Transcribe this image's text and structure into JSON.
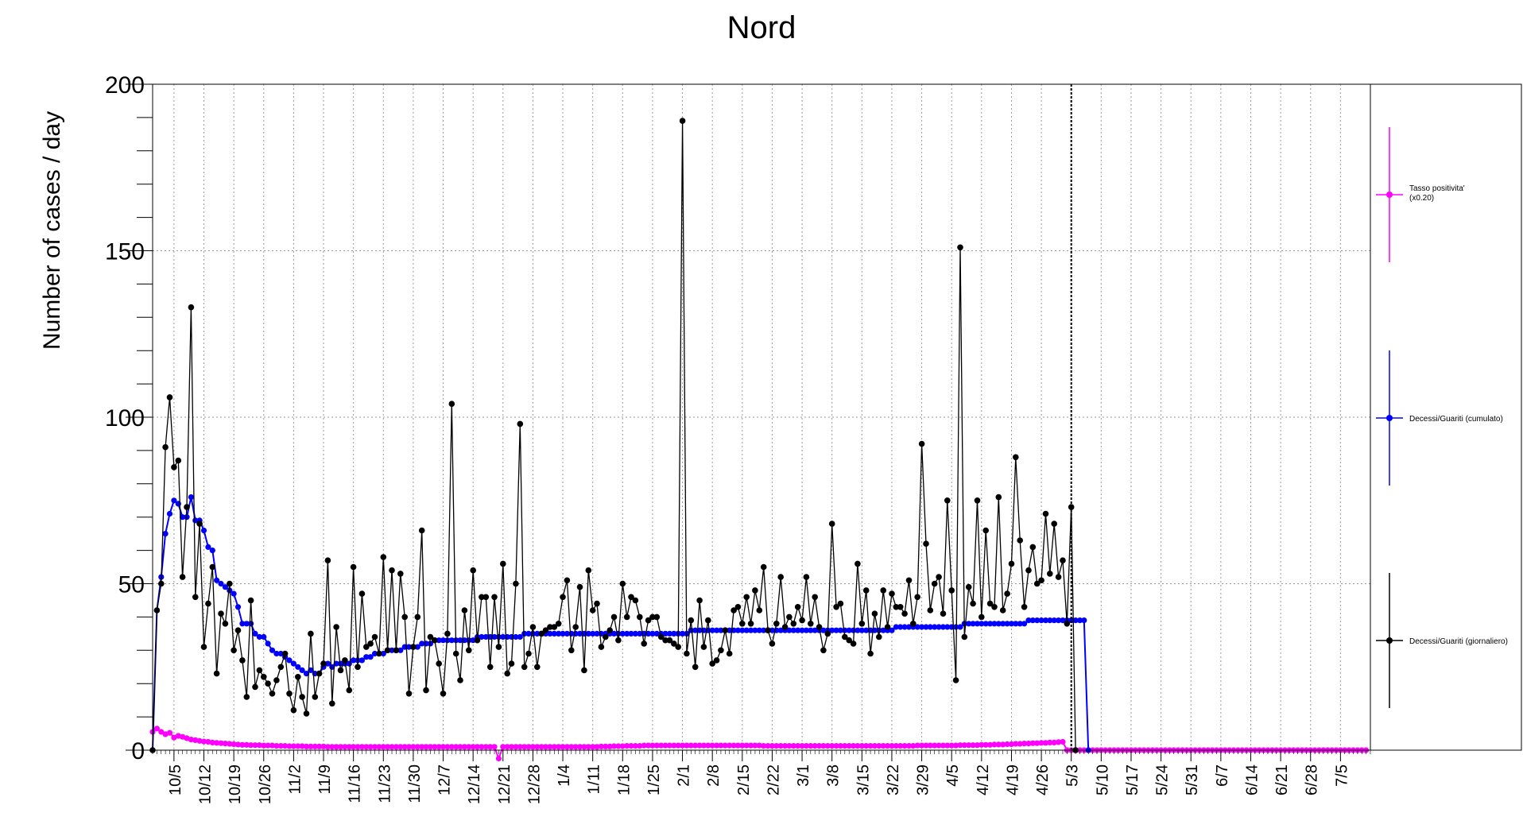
{
  "chart_data": {
    "type": "line",
    "title": "Nord",
    "xlabel": "",
    "ylabel": "Number of cases / day",
    "ylim": [
      0,
      200
    ],
    "y_ticks": [
      0,
      50,
      100,
      150,
      200
    ],
    "grid": true,
    "legend_position": "right",
    "x_tick_labels": [
      "10/5",
      "10/12",
      "10/19",
      "10/26",
      "11/2",
      "11/9",
      "11/16",
      "11/23",
      "11/30",
      "12/7",
      "12/14",
      "12/21",
      "12/28",
      "1/4",
      "1/11",
      "1/18",
      "1/25",
      "2/1",
      "2/8",
      "2/15",
      "2/22",
      "3/1",
      "3/8",
      "3/15",
      "3/22",
      "3/29",
      "4/5",
      "4/12",
      "4/19",
      "4/26",
      "5/3",
      "5/10",
      "5/17",
      "5/24",
      "5/31",
      "6/7",
      "6/14",
      "6/21",
      "6/28",
      "7/5"
    ],
    "x_start": "9/30",
    "x_end": "7/12",
    "marker_date": "5/3",
    "series": [
      {
        "name": "Decessi/Guariti (giornaliero)",
        "color": "#000000",
        "values": [
          0,
          42,
          50,
          91,
          106,
          85,
          87,
          52,
          73,
          133,
          46,
          68,
          31,
          44,
          55,
          23,
          41,
          38,
          50,
          30,
          36,
          27,
          16,
          45,
          19,
          24,
          22,
          20,
          17,
          21,
          25,
          29,
          17,
          12,
          22,
          16,
          11,
          35,
          16,
          23,
          26,
          57,
          14,
          37,
          24,
          27,
          18,
          55,
          25,
          47,
          31,
          32,
          34,
          29,
          58,
          30,
          54,
          30,
          53,
          40,
          17,
          31,
          40,
          66,
          18,
          34,
          33,
          26,
          17,
          35,
          104,
          29,
          21,
          42,
          30,
          54,
          33,
          46,
          46,
          25,
          46,
          31,
          56,
          23,
          26,
          50,
          98,
          25,
          29,
          37,
          25,
          35,
          36,
          37,
          37,
          38,
          46,
          51,
          30,
          37,
          49,
          24,
          54,
          42,
          44,
          31,
          34,
          36,
          40,
          33,
          50,
          40,
          46,
          45,
          40,
          32,
          39,
          40,
          40,
          34,
          33,
          33,
          32,
          31,
          189,
          29,
          39,
          25,
          45,
          31,
          39,
          26,
          27,
          30,
          36,
          29,
          42,
          43,
          38,
          46,
          38,
          48,
          42,
          55,
          36,
          32,
          38,
          52,
          37,
          40,
          38,
          43,
          39,
          52,
          38,
          46,
          37,
          30,
          35,
          68,
          43,
          44,
          34,
          33,
          32,
          56,
          38,
          48,
          29,
          41,
          34,
          48,
          37,
          47,
          43,
          43,
          41,
          51,
          38,
          46,
          92,
          62,
          42,
          50,
          52,
          41,
          75,
          48,
          21,
          151,
          34,
          49,
          44,
          75,
          40,
          66,
          44,
          43,
          76,
          42,
          47,
          56,
          88,
          63,
          43,
          54,
          61,
          50,
          51,
          71,
          53,
          68,
          52,
          57,
          38,
          73,
          0
        ]
      },
      {
        "name": "Decessi/Guariti (cumulato)",
        "color": "#0000ff",
        "values": [
          0,
          42,
          52,
          65,
          71,
          75,
          74,
          70,
          70,
          76,
          69,
          69,
          66,
          61,
          60,
          51,
          50,
          49,
          48,
          47,
          43,
          38,
          38,
          38,
          35,
          34,
          34,
          32,
          30,
          29,
          29,
          28,
          27,
          26,
          25,
          24,
          23,
          24,
          23,
          23,
          25,
          26,
          25,
          26,
          26,
          26,
          26,
          27,
          27,
          27,
          28,
          28,
          29,
          29,
          29,
          30,
          30,
          30,
          30,
          31,
          31,
          31,
          31,
          32,
          32,
          32,
          33,
          33,
          33,
          33,
          33,
          33,
          33,
          33,
          33,
          33,
          34,
          34,
          34,
          34,
          34,
          34,
          34,
          34,
          34,
          34,
          34,
          35,
          35,
          35,
          35,
          35,
          35,
          35,
          35,
          35,
          35,
          35,
          35,
          35,
          35,
          35,
          35,
          35,
          35,
          35,
          35,
          35,
          35,
          35,
          35,
          35,
          35,
          35,
          35,
          35,
          35,
          35,
          35,
          35,
          35,
          35,
          35,
          35,
          35,
          35,
          36,
          36,
          36,
          36,
          36,
          36,
          36,
          36,
          36,
          36,
          36,
          36,
          36,
          36,
          36,
          36,
          36,
          36,
          36,
          36,
          36,
          36,
          36,
          36,
          36,
          36,
          36,
          36,
          36,
          36,
          36,
          36,
          36,
          36,
          36,
          36,
          36,
          36,
          36,
          36,
          36,
          36,
          36,
          36,
          36,
          36,
          36,
          36,
          37,
          37,
          37,
          37,
          37,
          37,
          37,
          37,
          37,
          37,
          37,
          37,
          37,
          37,
          37,
          37,
          38,
          38,
          38,
          38,
          38,
          38,
          38,
          38,
          38,
          38,
          38,
          38,
          38,
          38,
          38,
          39,
          39,
          39,
          39,
          39,
          39,
          39,
          39,
          39,
          39,
          39,
          39,
          39,
          39,
          0
        ]
      },
      {
        "name": "Tasso positivita' (x0.20)",
        "color": "#ff00ff",
        "values": [
          5.5,
          6.5,
          5.5,
          4.8,
          5.2,
          3.8,
          4.3,
          4.0,
          3.6,
          3.2,
          3.0,
          2.8,
          2.6,
          2.5,
          2.3,
          2.2,
          2.1,
          2.0,
          1.9,
          1.8,
          1.7,
          1.6,
          1.6,
          1.5,
          1.5,
          1.5,
          1.4,
          1.4,
          1.4,
          1.3,
          1.3,
          1.3,
          1.2,
          1.2,
          1.2,
          1.2,
          1.1,
          1.1,
          1.1,
          1.1,
          1.1,
          1.0,
          1.0,
          1.0,
          1.0,
          1.0,
          1.0,
          1.0,
          1.0,
          1.0,
          1.0,
          1.0,
          1.0,
          1.0,
          1.0,
          1.0,
          1.0,
          1.0,
          1.0,
          1.0,
          1.0,
          1.0,
          1.0,
          1.0,
          1.0,
          1.0,
          1.0,
          1.0,
          1.0,
          1.0,
          1.0,
          1.0,
          1.0,
          1.0,
          1.0,
          1.0,
          1.0,
          1.0,
          1.0,
          1.0,
          1.0,
          -2.5,
          1.0,
          1.0,
          1.0,
          1.0,
          1.0,
          1.0,
          1.0,
          1.0,
          1.0,
          1.0,
          1.0,
          1.0,
          1.0,
          1.0,
          1.0,
          1.0,
          1.0,
          1.0,
          1.0,
          1.0,
          1.0,
          1.0,
          1.0,
          1.1,
          1.1,
          1.1,
          1.2,
          1.2,
          1.2,
          1.3,
          1.3,
          1.3,
          1.3,
          1.4,
          1.4,
          1.4,
          1.4,
          1.4,
          1.4,
          1.4,
          1.4,
          1.4,
          1.4,
          1.4,
          1.4,
          1.4,
          1.4,
          1.4,
          1.4,
          1.4,
          1.4,
          1.4,
          1.4,
          1.4,
          1.4,
          1.4,
          1.4,
          1.4,
          1.4,
          1.4,
          1.4,
          1.3,
          1.3,
          1.3,
          1.3,
          1.3,
          1.3,
          1.3,
          1.3,
          1.3,
          1.3,
          1.3,
          1.3,
          1.3,
          1.3,
          1.3,
          1.3,
          1.3,
          1.3,
          1.3,
          1.3,
          1.3,
          1.3,
          1.3,
          1.3,
          1.3,
          1.3,
          1.3,
          1.3,
          1.3,
          1.3,
          1.3,
          1.3,
          1.3,
          1.3,
          1.3,
          1.3,
          1.4,
          1.4,
          1.4,
          1.4,
          1.4,
          1.4,
          1.4,
          1.4,
          1.4,
          1.4,
          1.5,
          1.5,
          1.5,
          1.5,
          1.5,
          1.6,
          1.6,
          1.6,
          1.7,
          1.7,
          1.7,
          1.8,
          1.8,
          1.9,
          1.9,
          2.0,
          2.0,
          2.1,
          2.1,
          2.2,
          2.2,
          2.3,
          2.3,
          2.4,
          2.5,
          0,
          0,
          0,
          0,
          0,
          0,
          0,
          0,
          0,
          0,
          0,
          0,
          0,
          0,
          0,
          0,
          0,
          0,
          0,
          0,
          0,
          0,
          0,
          0,
          0,
          0,
          0,
          0,
          0,
          0,
          0,
          0,
          0,
          0,
          0,
          0,
          0,
          0,
          0,
          0,
          0,
          0,
          0,
          0,
          0,
          0,
          0,
          0,
          0,
          0,
          0,
          0,
          0,
          0,
          0,
          0,
          0,
          0,
          0,
          0,
          0,
          0,
          0,
          0,
          0,
          0,
          0,
          0,
          0,
          0,
          0
        ]
      }
    ]
  }
}
